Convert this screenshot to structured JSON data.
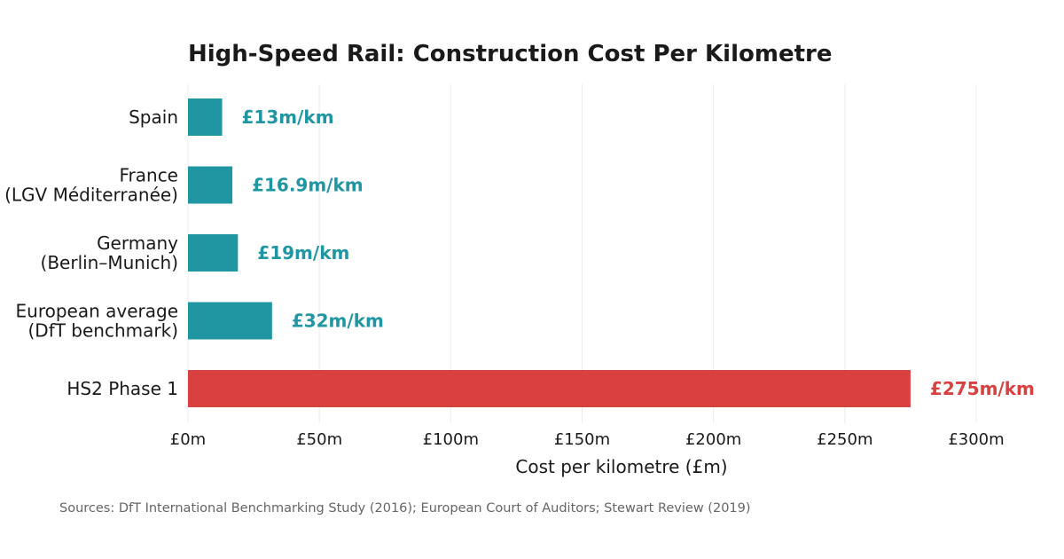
{
  "chart_data": {
    "type": "bar",
    "orientation": "horizontal",
    "title": "High-Speed Rail: Construction Cost Per Kilometre",
    "xlabel": "Cost per kilometre (£m)",
    "ylabel": "",
    "xlim": [
      0,
      300
    ],
    "xticks": [
      0,
      50,
      100,
      150,
      200,
      250,
      300
    ],
    "xtick_labels": [
      "£0m",
      "£50m",
      "£100m",
      "£150m",
      "£200m",
      "£250m",
      "£300m"
    ],
    "grid": true,
    "categories": [
      [
        "Spain"
      ],
      [
        "France",
        "(LGV Méditerranée)"
      ],
      [
        "Germany",
        "(Berlin–Munich)"
      ],
      [
        "European average",
        "(DfT benchmark)"
      ],
      [
        "HS2 Phase 1"
      ]
    ],
    "values": [
      13,
      16.9,
      19,
      32,
      275
    ],
    "value_labels": [
      "£13m/km",
      "£16.9m/km",
      "£19m/km",
      "£32m/km",
      "£275m/km"
    ],
    "bar_colors": [
      "#2196a3",
      "#2196a3",
      "#2196a3",
      "#2196a3",
      "#d94141"
    ],
    "source": "Sources: DfT International Benchmarking Study (2016); European Court of Auditors; Stewart Review (2019)"
  }
}
